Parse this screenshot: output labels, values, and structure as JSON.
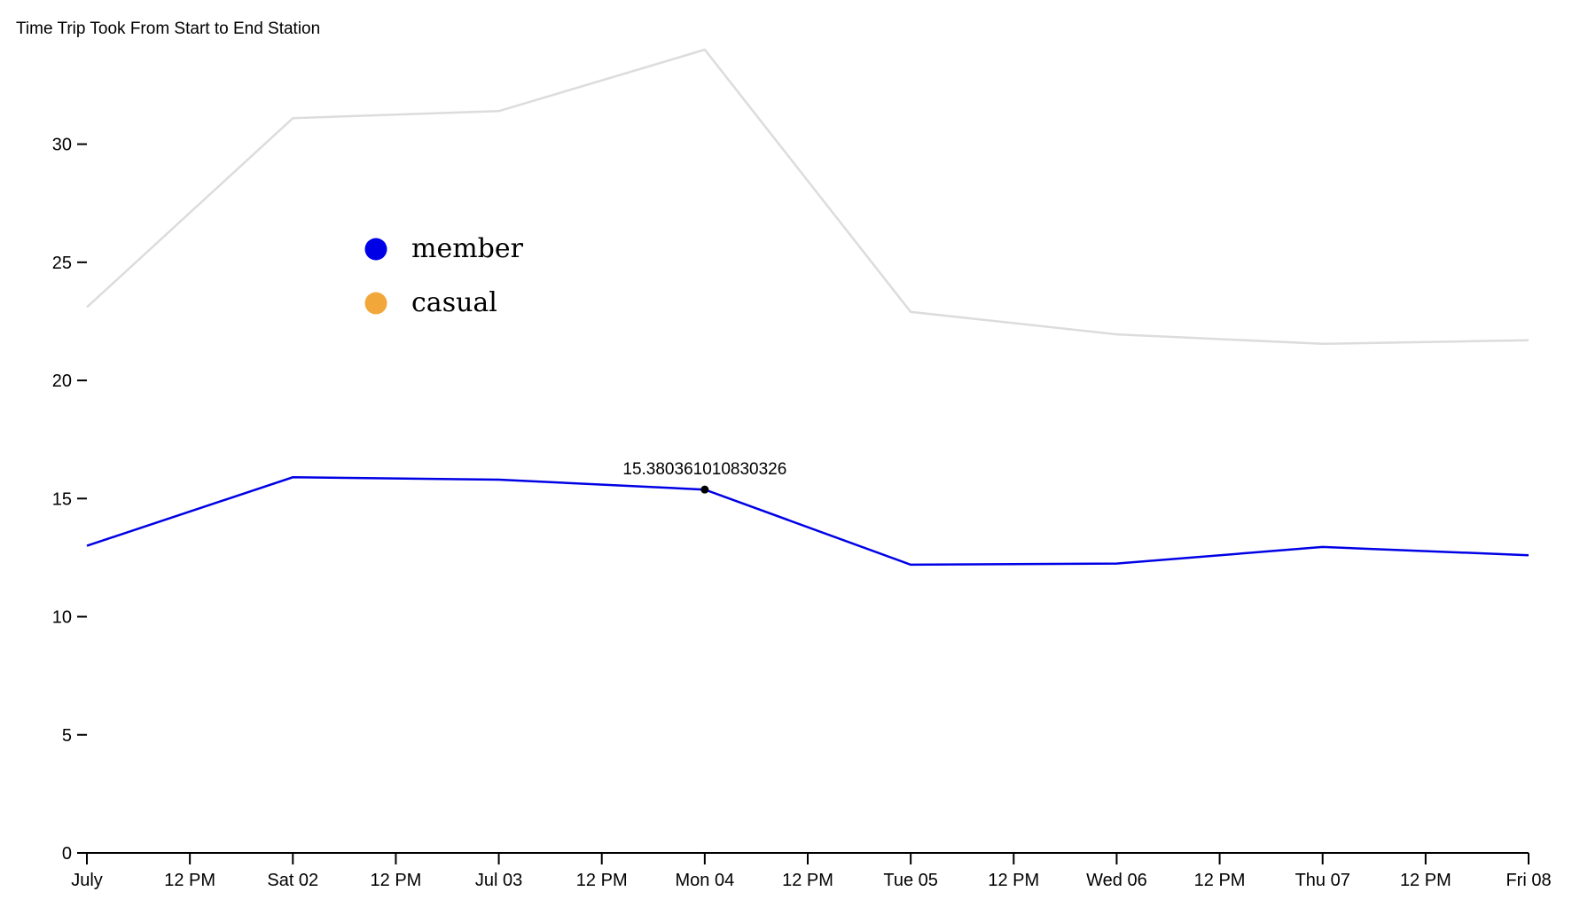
{
  "chart_data": {
    "type": "line",
    "title": "Time Trip Took From Start to End Station",
    "xlabel": "",
    "ylabel": "",
    "x": [
      "July",
      "Sat 02",
      "Jul 03",
      "Mon 04",
      "Tue 05",
      "Wed 06",
      "Thu 07",
      "Fri 08"
    ],
    "x_ticks": [
      "July",
      "12 PM",
      "Sat 02",
      "12 PM",
      "Jul 03",
      "12 PM",
      "Mon 04",
      "12 PM",
      "Tue 05",
      "12 PM",
      "Wed 06",
      "12 PM",
      "Thu 07",
      "12 PM",
      "Fri 08"
    ],
    "y_ticks": [
      "0",
      "5",
      "10",
      "15",
      "20",
      "25",
      "30"
    ],
    "ylim": [
      0,
      34
    ],
    "series": [
      {
        "name": "member",
        "color": "#0000e6",
        "values": [
          13.0,
          15.9,
          15.8,
          15.380361010830326,
          12.2,
          12.25,
          12.95,
          12.6
        ]
      },
      {
        "name": "casual",
        "color": "#f2a73b",
        "line_color": "#dcdcdc",
        "values": [
          23.1,
          31.1,
          31.4,
          34.0,
          22.9,
          21.95,
          21.55,
          21.7
        ]
      }
    ],
    "legend": {
      "placement": "upper-left",
      "items": [
        "member",
        "casual"
      ]
    },
    "highlight": {
      "series": "member",
      "point_index": 3,
      "label": "15.380361010830326"
    },
    "grid": false
  }
}
